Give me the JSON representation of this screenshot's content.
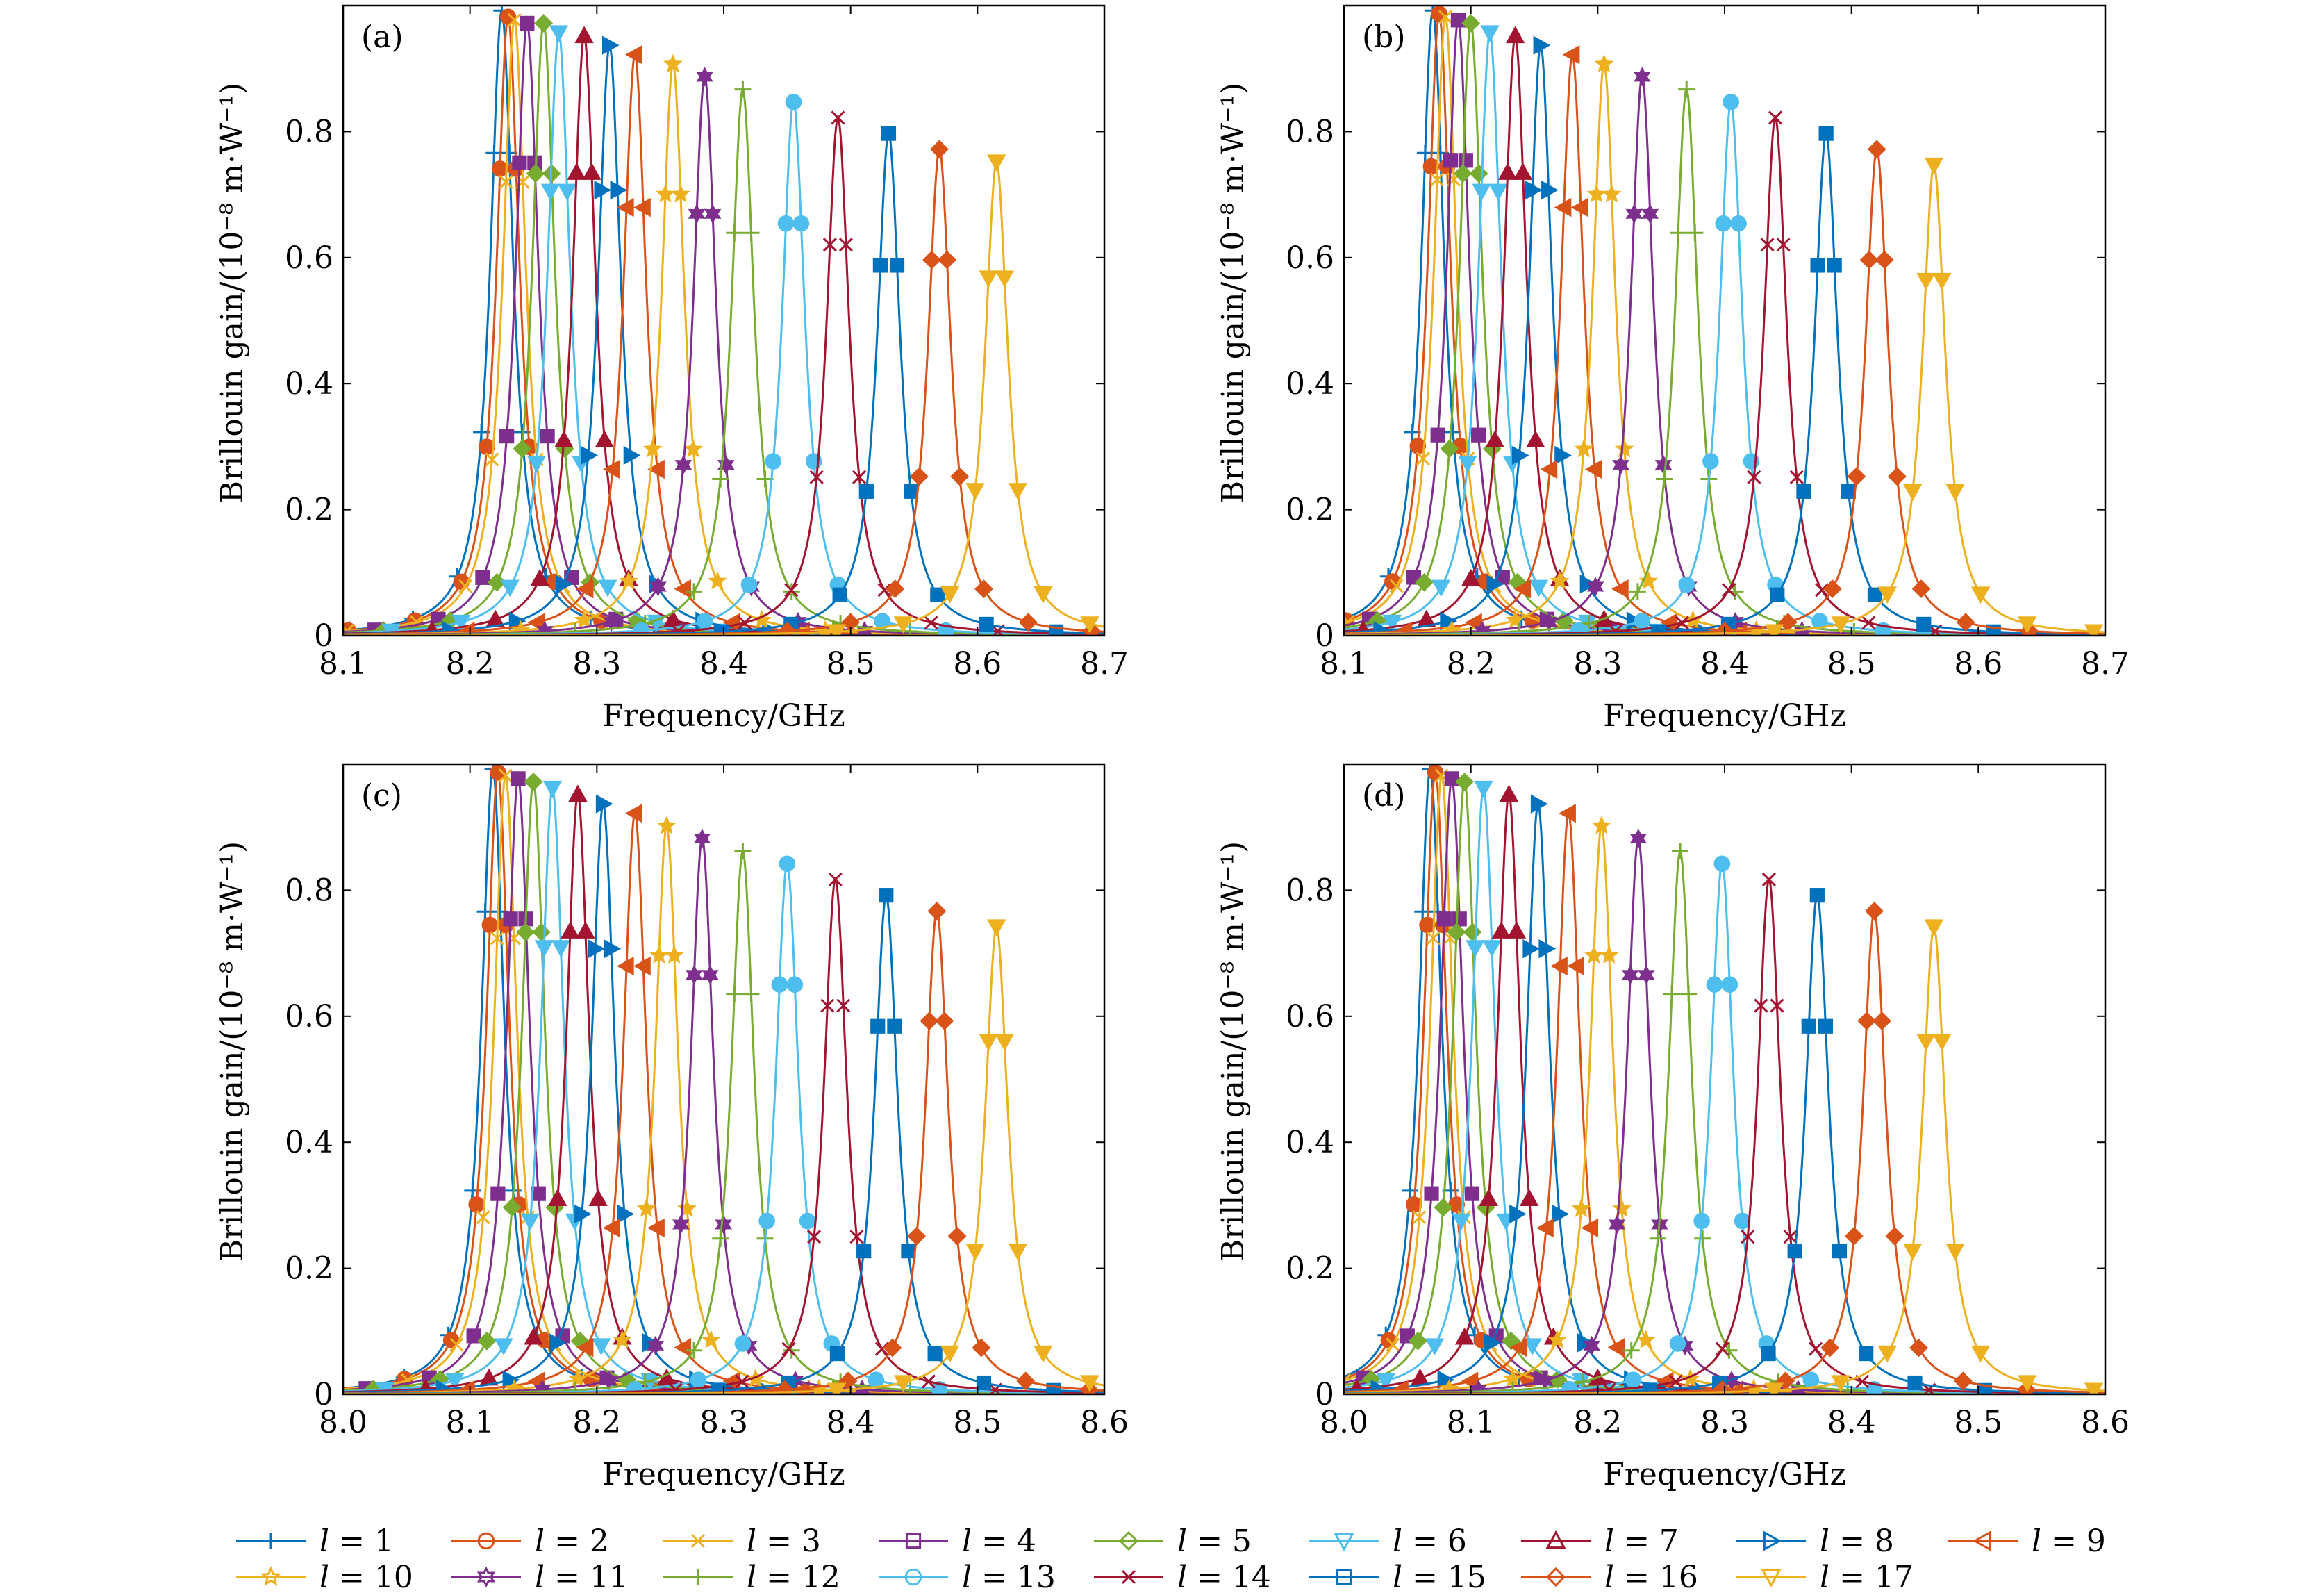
{
  "chart_data": [
    {
      "panel_label": "(a)",
      "type": "line",
      "xlabel": "Frequency/GHz",
      "ylabel": "Brillouin gain/(10⁻⁸ m·W⁻¹)",
      "xlim": [
        8.1,
        8.7
      ],
      "ylim": [
        0,
        1.0
      ],
      "xticks": [
        "8.1",
        "8.2",
        "8.3",
        "8.4",
        "8.5",
        "8.6",
        "8.7"
      ],
      "yticks": [
        "0",
        "0.2",
        "0.4",
        "0.6",
        "0.8"
      ],
      "peak_frequency": [
        8.225,
        8.23,
        8.235,
        8.245,
        8.258,
        8.27,
        8.29,
        8.31,
        8.33,
        8.36,
        8.385,
        8.415,
        8.455,
        8.49,
        8.53,
        8.57,
        8.615
      ],
      "peak_gain": [
        0.98,
        0.97,
        0.965,
        0.96,
        0.96,
        0.945,
        0.94,
        0.925,
        0.91,
        0.895,
        0.875,
        0.855,
        0.835,
        0.81,
        0.785,
        0.76,
        0.74
      ]
    },
    {
      "panel_label": "(b)",
      "type": "line",
      "xlabel": "Frequency/GHz",
      "ylabel": "Brillouin gain/(10⁻⁸ m·W⁻¹)",
      "xlim": [
        8.1,
        8.7
      ],
      "ylim": [
        0,
        1.0
      ],
      "xticks": [
        "8.1",
        "8.2",
        "8.3",
        "8.4",
        "8.5",
        "8.6",
        "8.7"
      ],
      "yticks": [
        "0",
        "0.2",
        "0.4",
        "0.6",
        "0.8"
      ],
      "peak_frequency": [
        8.17,
        8.175,
        8.18,
        8.19,
        8.2,
        8.215,
        8.235,
        8.255,
        8.28,
        8.305,
        8.335,
        8.37,
        8.405,
        8.44,
        8.48,
        8.52,
        8.565
      ],
      "peak_gain": [
        0.98,
        0.975,
        0.97,
        0.965,
        0.96,
        0.945,
        0.94,
        0.925,
        0.91,
        0.895,
        0.875,
        0.855,
        0.835,
        0.81,
        0.785,
        0.76,
        0.735
      ]
    },
    {
      "panel_label": "(c)",
      "type": "line",
      "xlabel": "Frequency/GHz",
      "ylabel": "Brillouin gain/(10⁻⁸ m·W⁻¹)",
      "xlim": [
        8.0,
        8.6
      ],
      "ylim": [
        0,
        1.0
      ],
      "xticks": [
        "8.0",
        "8.1",
        "8.2",
        "8.3",
        "8.4",
        "8.5",
        "8.6"
      ],
      "yticks": [
        "0",
        "0.2",
        "0.4",
        "0.6",
        "0.8"
      ],
      "peak_frequency": [
        8.118,
        8.122,
        8.128,
        8.138,
        8.15,
        8.165,
        8.185,
        8.205,
        8.23,
        8.255,
        8.283,
        8.315,
        8.35,
        8.388,
        8.428,
        8.468,
        8.515
      ],
      "peak_gain": [
        0.98,
        0.975,
        0.97,
        0.965,
        0.96,
        0.95,
        0.94,
        0.925,
        0.91,
        0.89,
        0.87,
        0.85,
        0.83,
        0.805,
        0.78,
        0.755,
        0.73
      ]
    },
    {
      "panel_label": "(d)",
      "type": "line",
      "xlabel": "Frequency/GHz",
      "ylabel": "Brillouin gain/(10⁻⁸ m·W⁻¹)",
      "xlim": [
        8.0,
        8.6
      ],
      "ylim": [
        0,
        1.0
      ],
      "xticks": [
        "8.0",
        "8.1",
        "8.2",
        "8.3",
        "8.4",
        "8.5",
        "8.6"
      ],
      "yticks": [
        "0",
        "0.2",
        "0.4",
        "0.6",
        "0.8"
      ],
      "peak_frequency": [
        8.068,
        8.072,
        8.077,
        8.085,
        8.095,
        8.11,
        8.13,
        8.153,
        8.177,
        8.203,
        8.232,
        8.265,
        8.298,
        8.335,
        8.373,
        8.418,
        8.465
      ],
      "peak_gain": [
        0.98,
        0.975,
        0.97,
        0.965,
        0.96,
        0.95,
        0.94,
        0.925,
        0.91,
        0.89,
        0.87,
        0.85,
        0.83,
        0.805,
        0.78,
        0.755,
        0.73
      ]
    }
  ],
  "legend": {
    "placement": "bottom",
    "entries": [
      {
        "prefix": "l",
        "value": "1",
        "color": "#0072BD",
        "marker": "plus"
      },
      {
        "prefix": "l",
        "value": "2",
        "color": "#D95319",
        "marker": "circle"
      },
      {
        "prefix": "l",
        "value": "3",
        "color": "#EDB120",
        "marker": "x"
      },
      {
        "prefix": "l",
        "value": "4",
        "color": "#7E2F8E",
        "marker": "square"
      },
      {
        "prefix": "l",
        "value": "5",
        "color": "#77AC30",
        "marker": "diamond"
      },
      {
        "prefix": "l",
        "value": "6",
        "color": "#4DBEEE",
        "marker": "triangle-down"
      },
      {
        "prefix": "l",
        "value": "7",
        "color": "#A2142F",
        "marker": "triangle-up"
      },
      {
        "prefix": "l",
        "value": "8",
        "color": "#0072BD",
        "marker": "triangle-right"
      },
      {
        "prefix": "l",
        "value": "9",
        "color": "#D95319",
        "marker": "triangle-left"
      },
      {
        "prefix": "l",
        "value": "10",
        "color": "#EDB120",
        "marker": "star"
      },
      {
        "prefix": "l",
        "value": "11",
        "color": "#7E2F8E",
        "marker": "hexagram"
      },
      {
        "prefix": "l",
        "value": "12",
        "color": "#77AC30",
        "marker": "plus"
      },
      {
        "prefix": "l",
        "value": "13",
        "color": "#4DBEEE",
        "marker": "circle"
      },
      {
        "prefix": "l",
        "value": "14",
        "color": "#A2142F",
        "marker": "x"
      },
      {
        "prefix": "l",
        "value": "15",
        "color": "#0072BD",
        "marker": "square"
      },
      {
        "prefix": "l",
        "value": "16",
        "color": "#D95319",
        "marker": "diamond"
      },
      {
        "prefix": "l",
        "value": "17",
        "color": "#EDB120",
        "marker": "triangle-down"
      }
    ]
  }
}
